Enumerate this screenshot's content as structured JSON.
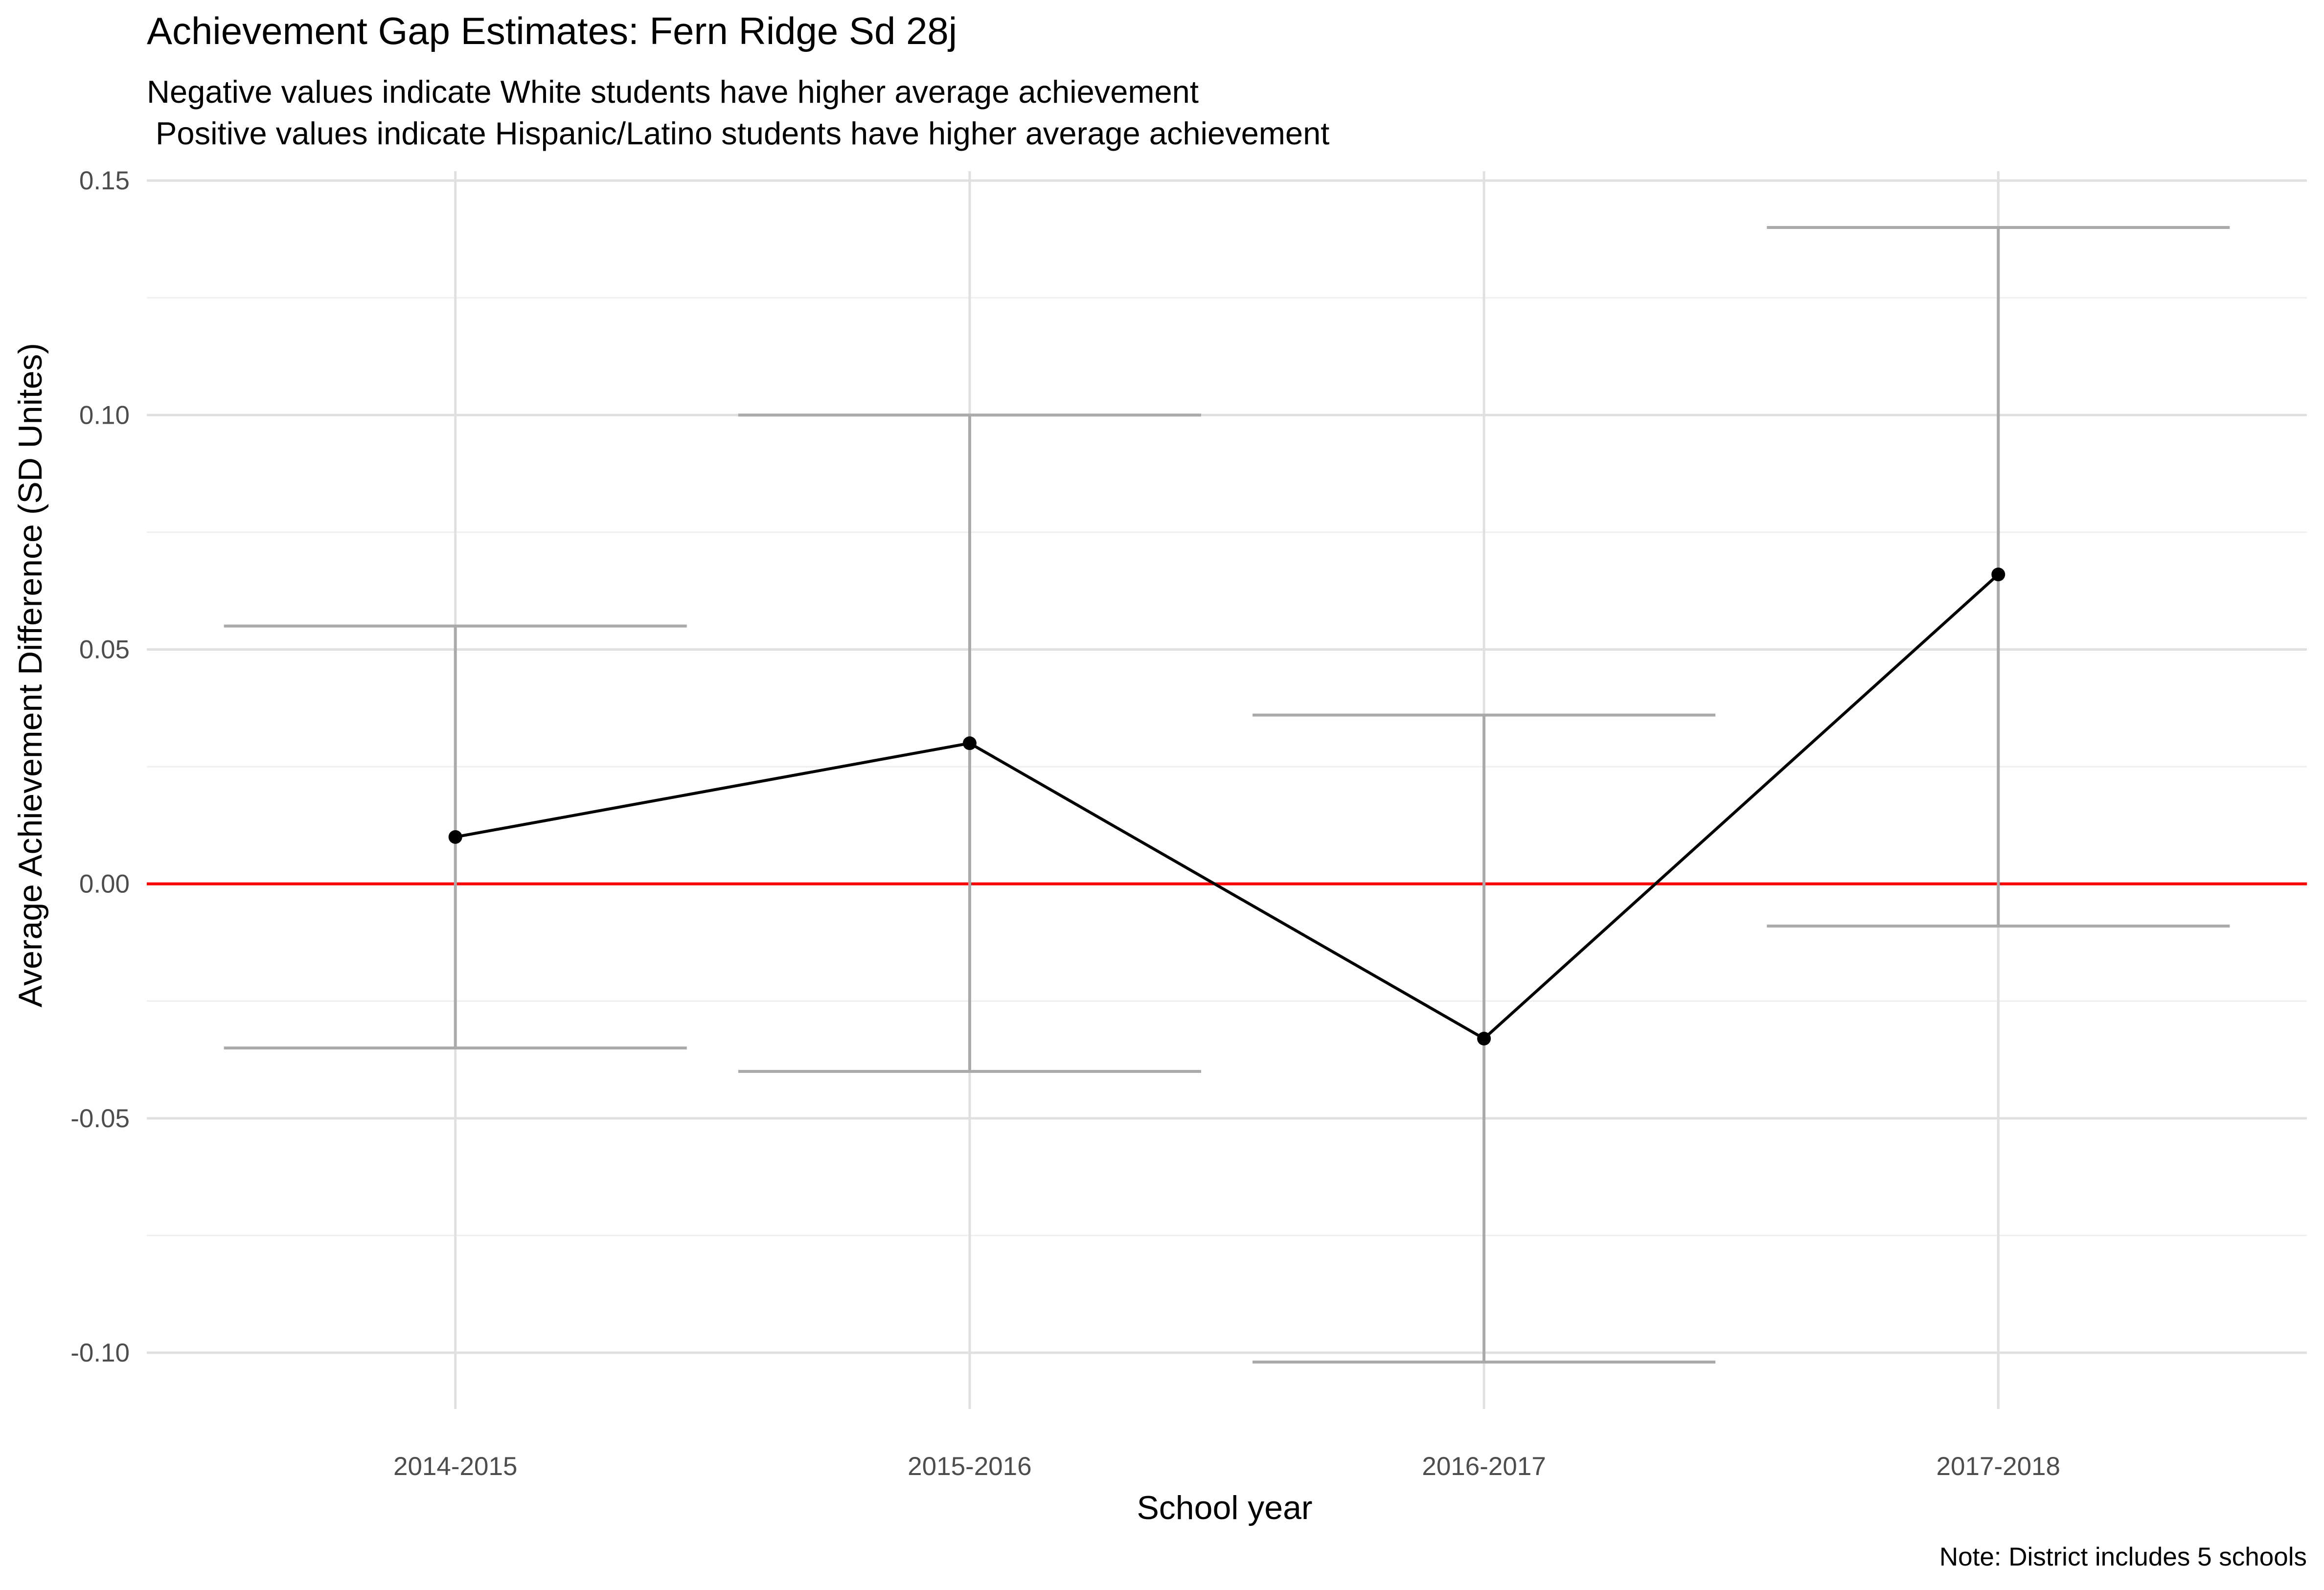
{
  "chart_data": {
    "type": "line",
    "title": "Achievement Gap Estimates: Fern Ridge Sd 28j",
    "subtitle_lines": [
      "Negative values indicate White students have higher average achievement",
      " Positive values indicate Hispanic/Latino students have higher average achievement"
    ],
    "xlabel": "School year",
    "ylabel": "Average Achievement Difference (SD Unites)",
    "caption": "Note: District includes 5 schools",
    "categories": [
      "2014-2015",
      "2015-2016",
      "2016-2017",
      "2017-2018"
    ],
    "values": [
      0.01,
      0.03,
      -0.033,
      0.066
    ],
    "lower": [
      -0.035,
      -0.04,
      -0.102,
      -0.009
    ],
    "upper": [
      0.055,
      0.1,
      0.036,
      0.14
    ],
    "y_ticks": [
      -0.1,
      -0.05,
      0.0,
      0.05,
      0.1,
      0.15
    ],
    "y_tick_labels": [
      "-0.10",
      "-0.05",
      "0.00",
      "0.05",
      "0.10",
      "0.15"
    ],
    "ylim": [
      -0.112,
      0.152
    ],
    "reference_line": 0,
    "grid": true,
    "legend": "none",
    "colors": {
      "line": "#000000",
      "point": "#000000",
      "errorbar": "#aaaaaa",
      "reference": "#ff0000",
      "grid_major": "#e0e0e0",
      "grid_minor": "#efefef"
    }
  }
}
